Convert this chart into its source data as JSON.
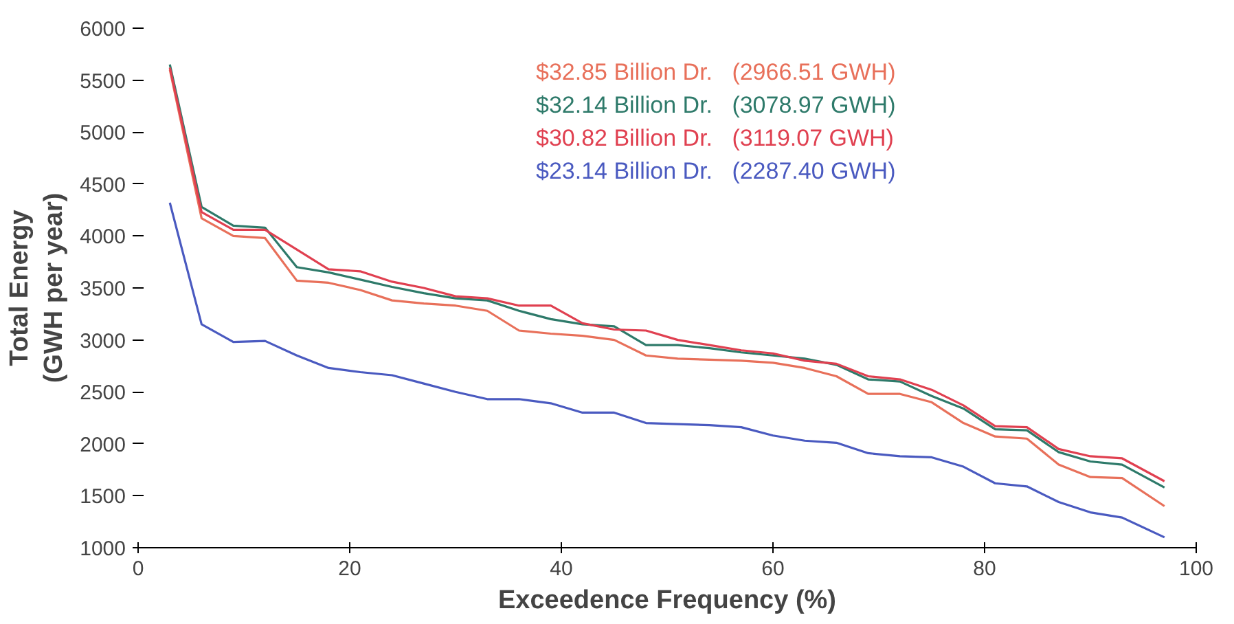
{
  "chart_data": {
    "type": "line",
    "xlabel": "Exceedence Frequency (%)",
    "ylabel": "Total Energy\n(GWH per year)",
    "x": [
      3,
      6,
      9,
      12,
      15,
      18,
      21,
      24,
      27,
      30,
      33,
      36,
      39,
      42,
      45,
      48,
      51,
      54,
      57,
      60,
      63,
      66,
      69,
      72,
      75,
      78,
      81,
      84,
      87,
      90,
      93,
      97
    ],
    "series": [
      {
        "name": "$32.85 Billion Dr.   (2966.51 GWH)",
        "color": "#e8705a",
        "values": [
          5600,
          4170,
          4000,
          3980,
          3570,
          3550,
          3480,
          3380,
          3350,
          3330,
          3280,
          3090,
          3060,
          3040,
          3000,
          2850,
          2820,
          2810,
          2800,
          2780,
          2730,
          2650,
          2480,
          2480,
          2400,
          2200,
          2070,
          2050,
          1800,
          1680,
          1670,
          1400
        ]
      },
      {
        "name": "$32.14 Billion Dr.   (3078.97 GWH)",
        "color": "#2e7a6a",
        "values": [
          5650,
          4280,
          4100,
          4080,
          3700,
          3650,
          3580,
          3510,
          3450,
          3400,
          3380,
          3280,
          3200,
          3150,
          3130,
          2950,
          2950,
          2920,
          2880,
          2850,
          2820,
          2760,
          2620,
          2600,
          2460,
          2340,
          2140,
          2130,
          1920,
          1830,
          1800,
          1580
        ]
      },
      {
        "name": "$30.82 Billion Dr.   (3119.07 GWH)",
        "color": "#e04050",
        "values": [
          5620,
          4230,
          4060,
          4060,
          3870,
          3680,
          3660,
          3560,
          3500,
          3420,
          3400,
          3330,
          3330,
          3160,
          3100,
          3090,
          3000,
          2950,
          2900,
          2870,
          2800,
          2770,
          2650,
          2620,
          2520,
          2370,
          2170,
          2160,
          1950,
          1880,
          1860,
          1640
        ]
      },
      {
        "name": "$23.14 Billion Dr.   (2287.40 GWH)",
        "color": "#4a5ac0",
        "values": [
          4320,
          3150,
          2980,
          2990,
          2850,
          2730,
          2690,
          2660,
          2580,
          2500,
          2430,
          2430,
          2390,
          2300,
          2300,
          2200,
          2190,
          2180,
          2160,
          2080,
          2030,
          2010,
          1910,
          1880,
          1870,
          1780,
          1620,
          1590,
          1440,
          1340,
          1290,
          1100
        ]
      }
    ],
    "xlim": [
      0,
      100
    ],
    "xticks": [
      0,
      20,
      40,
      60,
      80,
      100
    ],
    "ylim": [
      1000,
      6000
    ],
    "yticks": [
      1000,
      1500,
      2000,
      2500,
      3000,
      3500,
      4000,
      4500,
      5000,
      5500,
      6000
    ],
    "grid": false,
    "legend": "top",
    "line_style": "solid",
    "marker": "none"
  }
}
